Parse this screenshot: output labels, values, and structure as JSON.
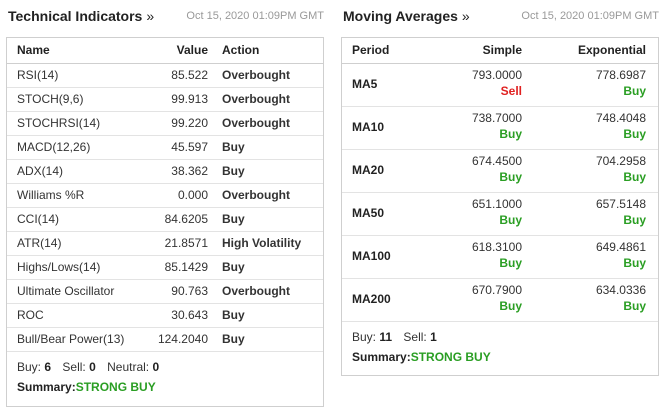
{
  "technical": {
    "title": "Technical Indicators",
    "chevron": "»",
    "timestamp": "Oct 15, 2020 01:09PM GMT",
    "headers": {
      "name": "Name",
      "value": "Value",
      "action": "Action"
    },
    "rows": [
      {
        "name": "RSI(14)",
        "value": "85.522",
        "action": "Overbought",
        "kind": "plain"
      },
      {
        "name": "STOCH(9,6)",
        "value": "99.913",
        "action": "Overbought",
        "kind": "plain"
      },
      {
        "name": "STOCHRSI(14)",
        "value": "99.220",
        "action": "Overbought",
        "kind": "plain"
      },
      {
        "name": "MACD(12,26)",
        "value": "45.597",
        "action": "Buy",
        "kind": "buy"
      },
      {
        "name": "ADX(14)",
        "value": "38.362",
        "action": "Buy",
        "kind": "buy"
      },
      {
        "name": "Williams %R",
        "value": "0.000",
        "action": "Overbought",
        "kind": "plain"
      },
      {
        "name": "CCI(14)",
        "value": "84.6205",
        "action": "Buy",
        "kind": "buy"
      },
      {
        "name": "ATR(14)",
        "value": "21.8571",
        "action": "High Volatility",
        "kind": "plain"
      },
      {
        "name": "Highs/Lows(14)",
        "value": "85.1429",
        "action": "Buy",
        "kind": "buy"
      },
      {
        "name": "Ultimate Oscillator",
        "value": "90.763",
        "action": "Overbought",
        "kind": "plain"
      },
      {
        "name": "ROC",
        "value": "30.643",
        "action": "Buy",
        "kind": "buy"
      },
      {
        "name": "Bull/Bear Power(13)",
        "value": "124.2040",
        "action": "Buy",
        "kind": "buy"
      }
    ],
    "counts": {
      "buy_label": "Buy:",
      "buy": "6",
      "sell_label": "Sell:",
      "sell": "0",
      "neutral_label": "Neutral:",
      "neutral": "0"
    },
    "summary": {
      "label": "Summary:",
      "value": "STRONG BUY"
    }
  },
  "moving_averages": {
    "title": "Moving Averages",
    "chevron": "»",
    "timestamp": "Oct 15, 2020 01:09PM GMT",
    "headers": {
      "period": "Period",
      "simple": "Simple",
      "exponential": "Exponential"
    },
    "rows": [
      {
        "period": "MA5",
        "simple": "793.0000",
        "simple_signal": "Sell",
        "simple_kind": "sell",
        "exp": "778.6987",
        "exp_signal": "Buy",
        "exp_kind": "buy"
      },
      {
        "period": "MA10",
        "simple": "738.7000",
        "simple_signal": "Buy",
        "simple_kind": "buy",
        "exp": "748.4048",
        "exp_signal": "Buy",
        "exp_kind": "buy"
      },
      {
        "period": "MA20",
        "simple": "674.4500",
        "simple_signal": "Buy",
        "simple_kind": "buy",
        "exp": "704.2958",
        "exp_signal": "Buy",
        "exp_kind": "buy"
      },
      {
        "period": "MA50",
        "simple": "651.1000",
        "simple_signal": "Buy",
        "simple_kind": "buy",
        "exp": "657.5148",
        "exp_signal": "Buy",
        "exp_kind": "buy"
      },
      {
        "period": "MA100",
        "simple": "618.3100",
        "simple_signal": "Buy",
        "simple_kind": "buy",
        "exp": "649.4861",
        "exp_signal": "Buy",
        "exp_kind": "buy"
      },
      {
        "period": "MA200",
        "simple": "670.7900",
        "simple_signal": "Buy",
        "simple_kind": "buy",
        "exp": "634.0336",
        "exp_signal": "Buy",
        "exp_kind": "buy"
      }
    ],
    "counts": {
      "buy_label": "Buy:",
      "buy": "11",
      "sell_label": "Sell:",
      "sell": "1"
    },
    "summary": {
      "label": "Summary:",
      "value": "STRONG BUY"
    }
  },
  "colors": {
    "buy": "#2a9e23",
    "sell": "#e02020",
    "border": "#cfcfcf"
  }
}
